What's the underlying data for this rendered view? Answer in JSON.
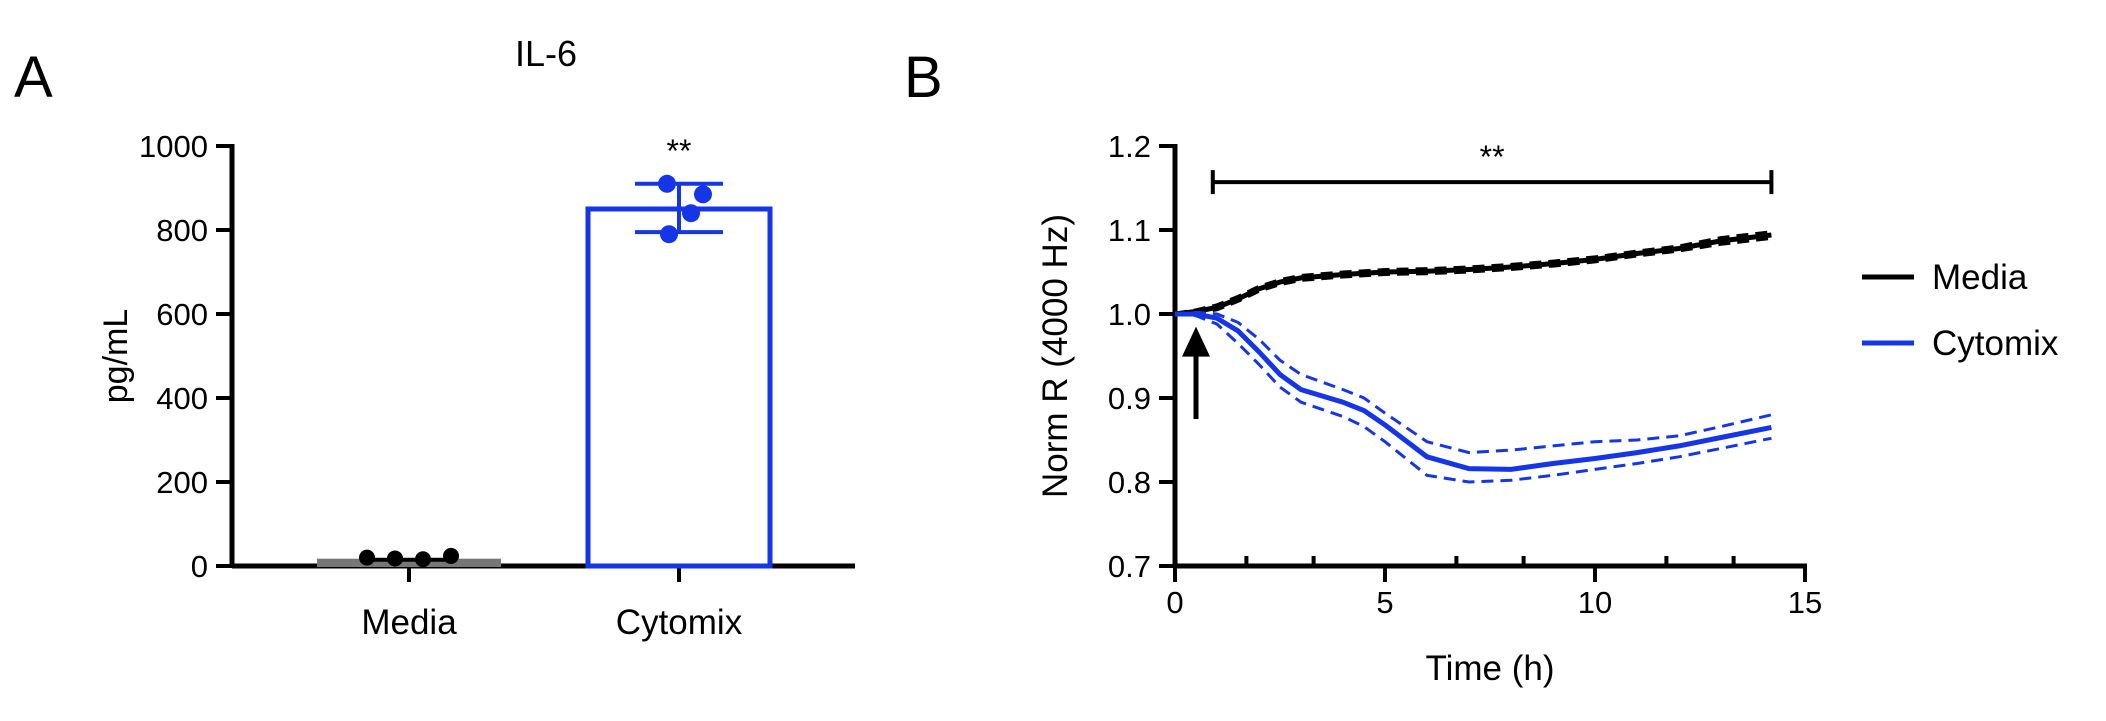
{
  "colors": {
    "media": "#000000",
    "cytomix": "#1536e6",
    "media_bar": "#777777"
  },
  "panel_a": {
    "letter": "A",
    "title": "IL-6"
  },
  "panel_b": {
    "letter": "B"
  },
  "chart_data": [
    {
      "type": "bar",
      "title": "IL-6",
      "xlabel": "",
      "ylabel": "pg/mL",
      "ylim": [
        0,
        1000
      ],
      "yticks": [
        0,
        200,
        400,
        600,
        800,
        1000
      ],
      "ytick_labels": [
        "0",
        "200",
        "400",
        "600",
        "800",
        "1000"
      ],
      "categories": [
        "Media",
        "Cytomix"
      ],
      "values": [
        15,
        850
      ],
      "error": [
        [
          12,
          18
        ],
        [
          795,
          910
        ]
      ],
      "points": [
        [
          20,
          18,
          16,
          24
        ],
        [
          910,
          885,
          840,
          790
        ]
      ],
      "annotation": "**"
    },
    {
      "type": "line",
      "xlabel": "Time (h)",
      "ylabel": "Norm R (4000 Hz)",
      "xlim": [
        0,
        15
      ],
      "ylim": [
        0.7,
        1.2
      ],
      "xticks": [
        0,
        5,
        10,
        15
      ],
      "xtick_labels": [
        "0",
        "5",
        "10",
        "15"
      ],
      "x_minor_ticks": [
        1.7,
        3.3,
        6.7,
        8.3,
        11.7,
        13.3
      ],
      "yticks": [
        0.7,
        0.8,
        0.9,
        1.0,
        1.1,
        1.2
      ],
      "ytick_labels": [
        "0.7",
        "0.8",
        "0.9",
        "1.0",
        "1.1",
        "1.2"
      ],
      "significance": {
        "x_start": 0.9,
        "x_end": 14.2,
        "y": 1.157,
        "label": "**"
      },
      "arrow": {
        "x": 0.5,
        "y_from": 0.875,
        "y_to": 0.985
      },
      "legend": {
        "position": "right",
        "entries": [
          "Media",
          "Cytomix"
        ]
      },
      "series": [
        {
          "name": "Media",
          "x": [
            0,
            0.5,
            1,
            1.5,
            2,
            2.5,
            3,
            4,
            5,
            6,
            7,
            8,
            9,
            10,
            11,
            12,
            13,
            14.2
          ],
          "y": [
            1.0,
            1.003,
            1.008,
            1.018,
            1.03,
            1.038,
            1.043,
            1.047,
            1.05,
            1.051,
            1.053,
            1.056,
            1.06,
            1.065,
            1.072,
            1.078,
            1.087,
            1.094
          ],
          "lower": [
            0.999,
            1.001,
            1.005,
            1.015,
            1.027,
            1.035,
            1.04,
            1.044,
            1.047,
            1.048,
            1.05,
            1.053,
            1.057,
            1.062,
            1.069,
            1.075,
            1.083,
            1.09
          ],
          "upper": [
            1.001,
            1.005,
            1.011,
            1.021,
            1.033,
            1.041,
            1.046,
            1.05,
            1.053,
            1.054,
            1.056,
            1.059,
            1.063,
            1.068,
            1.075,
            1.081,
            1.091,
            1.098
          ]
        },
        {
          "name": "Cytomix",
          "x": [
            0,
            0.5,
            1,
            1.5,
            2,
            2.5,
            3,
            4,
            4.5,
            5,
            6,
            7,
            8,
            9,
            10,
            11,
            12,
            13,
            14.2
          ],
          "y": [
            1.0,
            1.0,
            0.995,
            0.98,
            0.955,
            0.928,
            0.91,
            0.895,
            0.885,
            0.868,
            0.83,
            0.816,
            0.815,
            0.822,
            0.828,
            0.835,
            0.843,
            0.853,
            0.865
          ],
          "lower": [
            1.0,
            0.998,
            0.988,
            0.965,
            0.94,
            0.913,
            0.895,
            0.878,
            0.866,
            0.848,
            0.808,
            0.8,
            0.802,
            0.808,
            0.815,
            0.822,
            0.83,
            0.84,
            0.852
          ],
          "upper": [
            1.0,
            1.002,
            1.0,
            0.99,
            0.97,
            0.945,
            0.928,
            0.91,
            0.9,
            0.882,
            0.848,
            0.835,
            0.838,
            0.843,
            0.848,
            0.85,
            0.855,
            0.866,
            0.88
          ]
        }
      ]
    }
  ]
}
